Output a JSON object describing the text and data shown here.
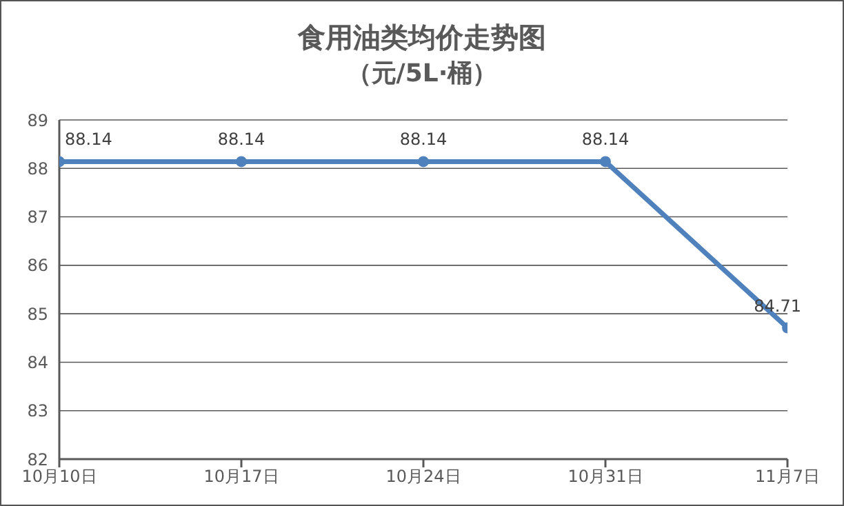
{
  "chart_data": {
    "type": "line",
    "title": "食用油类均价走势图",
    "subtitle": "（元/5L·桶）",
    "categories": [
      "10月10日",
      "10月17日",
      "10月24日",
      "10月31日",
      "11月7日"
    ],
    "series": [
      {
        "color": "#4f81bd",
        "values": [
          88.14,
          88.14,
          88.14,
          88.14,
          84.71
        ]
      }
    ],
    "ylim": [
      82,
      89
    ],
    "yticks": [
      82,
      83,
      84,
      85,
      86,
      87,
      88,
      89
    ],
    "grid": "y",
    "marker": "circle",
    "line_style": "solid",
    "data_labels": true
  }
}
